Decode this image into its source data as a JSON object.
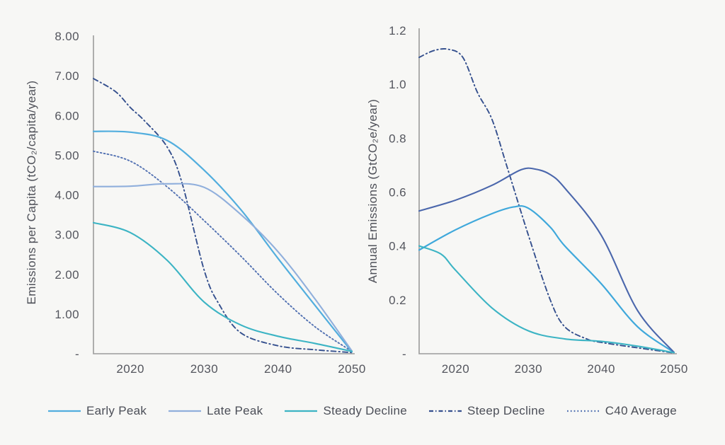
{
  "style": {
    "background": "#f7f7f5",
    "axis_color": "#9b9b9b",
    "tick_label_color": "#54565e",
    "legend_text_color": "#4b4e57"
  },
  "legend": {
    "items": [
      {
        "label": "Early Peak",
        "color": "#52aede",
        "dash": ""
      },
      {
        "label": "Late Peak",
        "color": "#90afdc",
        "dash": ""
      },
      {
        "label": "Steady Decline",
        "color": "#3cb4c4",
        "dash": ""
      },
      {
        "label": "Steep Decline",
        "color": "#35508e",
        "dash": "6 3 1.5 3"
      },
      {
        "label": "C40 Average",
        "color": "#5271b2",
        "dash": "1.8 3"
      }
    ]
  },
  "chart_data": [
    {
      "type": "line",
      "title": "",
      "xlabel": "",
      "ylabel": "Emissions per Capita (tCO₂/capita/year)",
      "x_range": [
        2015,
        2050
      ],
      "ylim": [
        0,
        8
      ],
      "grid": false,
      "x_ticks": [
        {
          "v": 2020,
          "label": "2020"
        },
        {
          "v": 2030,
          "label": "2030"
        },
        {
          "v": 2040,
          "label": "2040"
        },
        {
          "v": 2050,
          "label": "2050"
        }
      ],
      "y_ticks": [
        {
          "v": 0,
          "label": "-"
        },
        {
          "v": 1,
          "label": "1.00"
        },
        {
          "v": 2,
          "label": "2.00"
        },
        {
          "v": 3,
          "label": "3.00"
        },
        {
          "v": 4,
          "label": "4.00"
        },
        {
          "v": 5,
          "label": "5.00"
        },
        {
          "v": 6,
          "label": "6.00"
        },
        {
          "v": 7,
          "label": "7.00"
        },
        {
          "v": 8,
          "label": "8.00"
        }
      ],
      "series": [
        {
          "name": "Early Peak",
          "color": "#52aede",
          "dash": "",
          "width": 2.2,
          "points": [
            [
              2015,
              5.6
            ],
            [
              2020,
              5.58
            ],
            [
              2025,
              5.37
            ],
            [
              2030,
              4.62
            ],
            [
              2035,
              3.62
            ],
            [
              2040,
              2.4
            ],
            [
              2045,
              1.22
            ],
            [
              2050,
              0.05
            ]
          ]
        },
        {
          "name": "Late Peak",
          "color": "#90afdc",
          "dash": "",
          "width": 2.1,
          "points": [
            [
              2015,
              4.21
            ],
            [
              2020,
              4.22
            ],
            [
              2025,
              4.28
            ],
            [
              2030,
              4.19
            ],
            [
              2035,
              3.5
            ],
            [
              2040,
              2.57
            ],
            [
              2045,
              1.38
            ],
            [
              2050,
              0.07
            ]
          ]
        },
        {
          "name": "Steady Decline",
          "color": "#3cb4c4",
          "dash": "",
          "width": 2.1,
          "points": [
            [
              2015,
              3.3
            ],
            [
              2020,
              3.05
            ],
            [
              2025,
              2.35
            ],
            [
              2030,
              1.3
            ],
            [
              2035,
              0.72
            ],
            [
              2040,
              0.44
            ],
            [
              2045,
              0.26
            ],
            [
              2050,
              0.06
            ]
          ]
        },
        {
          "name": "Steep Decline",
          "color": "#35508e",
          "dash": "7 4 1.5 4",
          "width": 1.9,
          "points": [
            [
              2015,
              6.93
            ],
            [
              2018,
              6.6
            ],
            [
              2020,
              6.2
            ],
            [
              2022,
              5.85
            ],
            [
              2025,
              5.2
            ],
            [
              2027,
              4.3
            ],
            [
              2030,
              2.1
            ],
            [
              2032,
              1.25
            ],
            [
              2035,
              0.52
            ],
            [
              2040,
              0.2
            ],
            [
              2045,
              0.1
            ],
            [
              2050,
              0.03
            ]
          ]
        },
        {
          "name": "C40 Average",
          "color": "#5271b2",
          "dash": "1.8 3.2",
          "width": 1.9,
          "points": [
            [
              2015,
              5.1
            ],
            [
              2020,
              4.85
            ],
            [
              2025,
              4.2
            ],
            [
              2030,
              3.35
            ],
            [
              2035,
              2.45
            ],
            [
              2040,
              1.5
            ],
            [
              2045,
              0.68
            ],
            [
              2050,
              0.06
            ]
          ]
        }
      ]
    },
    {
      "type": "line",
      "title": "",
      "xlabel": "",
      "ylabel": "Annual Emissions (GtCO₂e/year)",
      "x_range": [
        2015,
        2050
      ],
      "ylim": [
        0,
        1.2
      ],
      "grid": false,
      "x_ticks": [
        {
          "v": 2020,
          "label": "2020"
        },
        {
          "v": 2030,
          "label": "2030"
        },
        {
          "v": 2040,
          "label": "2040"
        },
        {
          "v": 2050,
          "label": "2050"
        }
      ],
      "y_ticks": [
        {
          "v": 0,
          "label": "-"
        },
        {
          "v": 0.2,
          "label": "0.2"
        },
        {
          "v": 0.4,
          "label": "0.4"
        },
        {
          "v": 0.6,
          "label": "0.6"
        },
        {
          "v": 0.8,
          "label": "0.8"
        },
        {
          "v": 1.0,
          "label": "1.0"
        },
        {
          "v": 1.2,
          "label": "1.2"
        }
      ],
      "series": [
        {
          "name": "Early Peak",
          "color": "#3fa8db",
          "dash": "",
          "width": 2.2,
          "points": [
            [
              2015,
              0.385
            ],
            [
              2020,
              0.46
            ],
            [
              2025,
              0.52
            ],
            [
              2028,
              0.545
            ],
            [
              2030,
              0.54
            ],
            [
              2033,
              0.47
            ],
            [
              2035,
              0.4
            ],
            [
              2040,
              0.26
            ],
            [
              2045,
              0.1
            ],
            [
              2050,
              0.005
            ]
          ]
        },
        {
          "name": "Late Peak",
          "color": "#4b67ac",
          "dash": "",
          "width": 2.1,
          "points": [
            [
              2015,
              0.53
            ],
            [
              2020,
              0.57
            ],
            [
              2025,
              0.625
            ],
            [
              2029,
              0.683
            ],
            [
              2031,
              0.685
            ],
            [
              2033,
              0.665
            ],
            [
              2035,
              0.615
            ],
            [
              2040,
              0.44
            ],
            [
              2045,
              0.16
            ],
            [
              2050,
              0.005
            ]
          ]
        },
        {
          "name": "Steady Decline",
          "color": "#3cb4c4",
          "dash": "",
          "width": 2.1,
          "points": [
            [
              2015,
              0.4
            ],
            [
              2018,
              0.37
            ],
            [
              2020,
              0.31
            ],
            [
              2025,
              0.17
            ],
            [
              2030,
              0.085
            ],
            [
              2035,
              0.055
            ],
            [
              2040,
              0.046
            ],
            [
              2045,
              0.028
            ],
            [
              2050,
              0.004
            ]
          ]
        },
        {
          "name": "Steep Decline",
          "color": "#35508e",
          "dash": "7 4 1.5 4",
          "width": 1.9,
          "points": [
            [
              2015,
              1.1
            ],
            [
              2017,
              1.125
            ],
            [
              2019,
              1.13
            ],
            [
              2021,
              1.1
            ],
            [
              2023,
              0.97
            ],
            [
              2025,
              0.87
            ],
            [
              2027,
              0.7
            ],
            [
              2030,
              0.44
            ],
            [
              2033,
              0.2
            ],
            [
              2035,
              0.1
            ],
            [
              2038,
              0.055
            ],
            [
              2040,
              0.042
            ],
            [
              2045,
              0.022
            ],
            [
              2050,
              0.003
            ]
          ]
        }
      ]
    }
  ]
}
